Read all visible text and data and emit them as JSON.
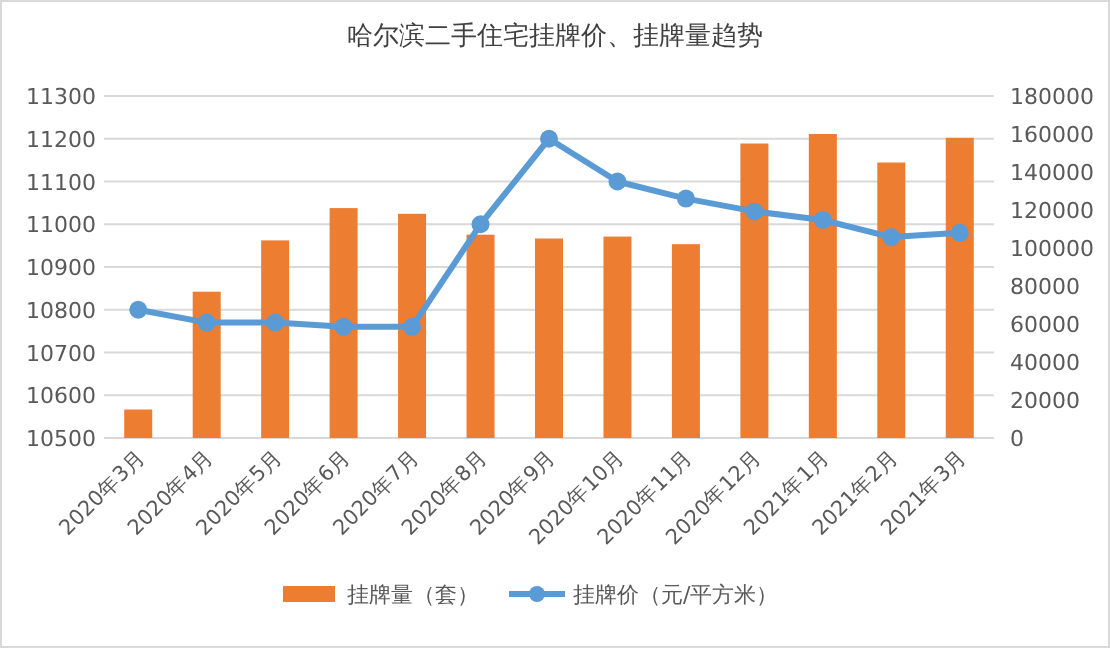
{
  "chart_data": {
    "type": "bar",
    "title": "哈尔滨二手住宅挂牌价、挂牌量趋势",
    "categories": [
      "2020年3月",
      "2020年4月",
      "2020年5月",
      "2020年6月",
      "2020年7月",
      "2020年8月",
      "2020年9月",
      "2020年10月",
      "2020年11月",
      "2020年12月",
      "2021年1月",
      "2021年2月",
      "2021年3月"
    ],
    "series": [
      {
        "name": "挂牌量（套）",
        "axis": "y2",
        "color": "#ed7d31",
        "values": [
          15000,
          77000,
          104000,
          121000,
          118000,
          107000,
          105000,
          106000,
          102000,
          155000,
          160000,
          145000,
          158000
        ]
      },
      {
        "name": "挂牌价（元/平方米）",
        "type": "line",
        "axis": "y",
        "color": "#5b9bd5",
        "values": [
          10800,
          10770,
          10770,
          10760,
          10760,
          11000,
          11200,
          11100,
          11060,
          11030,
          11010,
          10970,
          10980
        ]
      }
    ],
    "ylim": [
      10500,
      11300
    ],
    "yticks": [
      10500,
      10600,
      10700,
      10800,
      10900,
      11000,
      11100,
      11200,
      11300
    ],
    "y2lim": [
      0,
      180000
    ],
    "y2ticks": [
      0,
      20000,
      40000,
      60000,
      80000,
      100000,
      120000,
      140000,
      160000,
      180000
    ],
    "grid": "y",
    "legend": "bottom",
    "marker": "circle"
  }
}
